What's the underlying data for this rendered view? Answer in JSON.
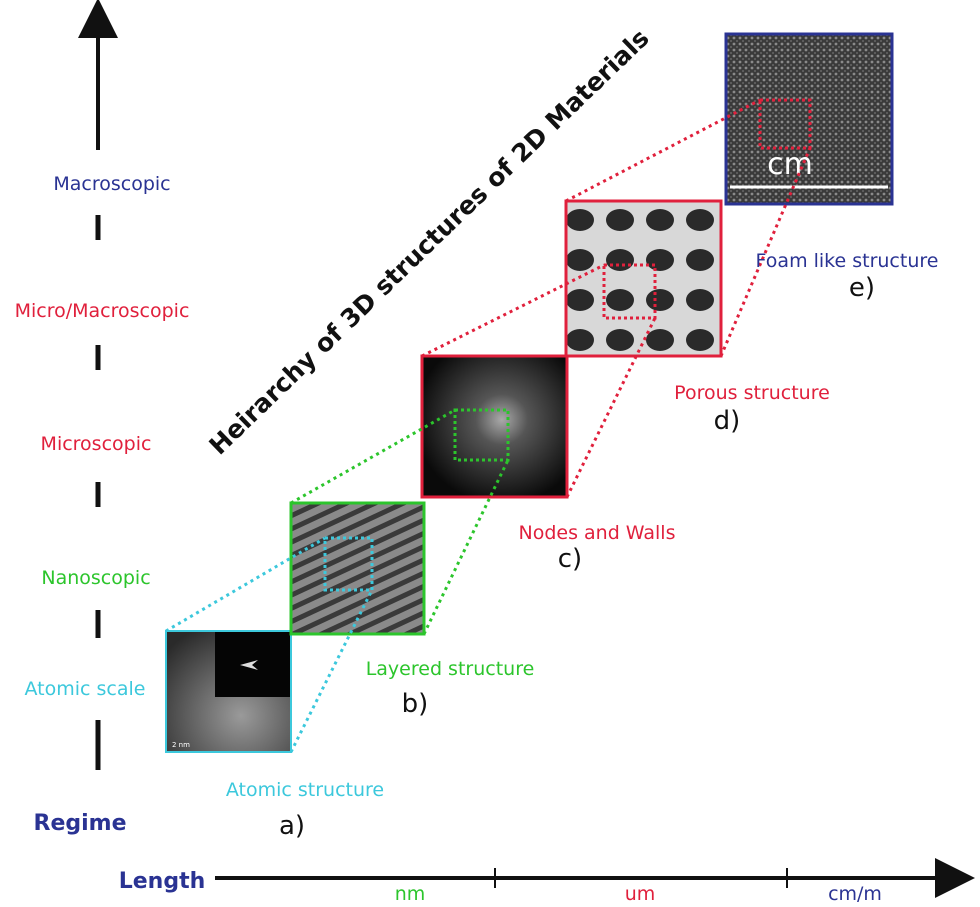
{
  "title": "Heirarchy of 3D structures of 2D Materials",
  "regime": {
    "label": "Regime",
    "levels": [
      "Macroscopic",
      "Micro/Macroscopic",
      "Microscopic",
      "Nanoscopic",
      "Atomic scale"
    ]
  },
  "length": {
    "label": "Length",
    "ranges": [
      "nm",
      "um",
      "cm/m"
    ]
  },
  "panels": [
    {
      "caption": "Atomic structure",
      "tag": "a)",
      "scale_bar": "2 nm"
    },
    {
      "caption": "Layered structure",
      "tag": "b)"
    },
    {
      "caption": "Nodes and Walls",
      "tag": "c)"
    },
    {
      "caption": "Porous structure",
      "tag": "d)"
    },
    {
      "caption": "Foam like structure",
      "tag": "e)",
      "scale_bar": "cm"
    }
  ]
}
